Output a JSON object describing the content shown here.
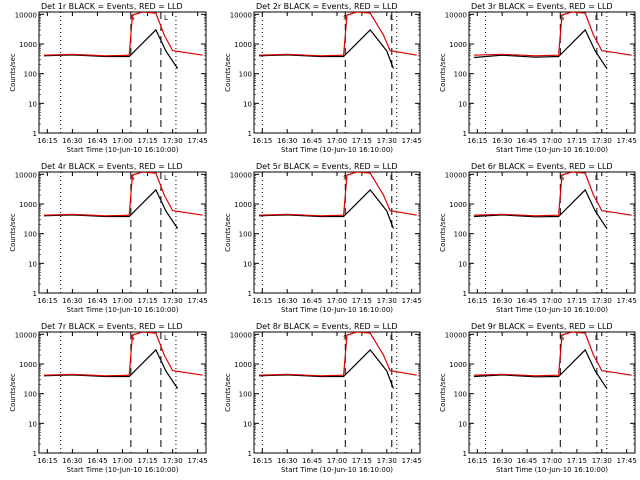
{
  "figure": {
    "colors": {
      "events": "#000000",
      "lld": "#dd0000",
      "axes": "#000000"
    },
    "x_tick_labels": [
      "16:15",
      "16:30",
      "16:45",
      "17:00",
      "17:15",
      "17:30",
      "17:45"
    ],
    "y_tick_labels": [
      "1",
      "10",
      "100",
      "1000",
      "10000"
    ],
    "xlabel": "Start Time (10-Jun-10 16:10:00)",
    "ylabel": "Counts/sec"
  },
  "chart_data": [
    {
      "type": "line",
      "title": "Det 1r BLACK = Events, RED = LLD",
      "ylabel": "Counts/sec",
      "xlabel": "Start Time (10-Jun-10 16:10:00)",
      "x_unit": "time of day",
      "xlim": [
        "16:10",
        "17:50"
      ],
      "y_scale": "log",
      "ylim": [
        1,
        12000
      ],
      "vlines_dotted": [
        "16:23",
        "17:32"
      ],
      "vlines_dashed": [
        "17:05",
        "17:23"
      ],
      "markers": [
        {
          "text": "S",
          "at": "17:06"
        },
        {
          "text": "L",
          "at": "17:26"
        }
      ],
      "series": [
        {
          "name": "Events",
          "color": "#000000",
          "x": [
            "16:13",
            "16:30",
            "16:50",
            "17:04",
            "17:20",
            "17:26",
            "17:33"
          ],
          "y": [
            400,
            430,
            380,
            380,
            3000,
            580,
            150
          ]
        },
        {
          "name": "LLD",
          "color": "#dd0000",
          "x": [
            "16:13",
            "16:30",
            "16:50",
            "17:04",
            "17:06",
            "17:12",
            "17:20",
            "17:25",
            "17:30",
            "17:48"
          ],
          "y": [
            420,
            450,
            400,
            420,
            9500,
            12000,
            11000,
            2000,
            600,
            420
          ]
        }
      ]
    },
    {
      "type": "line",
      "title": "Det 2r BLACK = Events, RED = LLD",
      "ylabel": "Counts/sec",
      "xlabel": "Start Time (10-Jun-10 16:10:00)",
      "x_unit": "time of day",
      "xlim": [
        "16:10",
        "17:50"
      ],
      "y_scale": "log",
      "ylim": [
        1,
        12000
      ],
      "vlines_dotted": [
        "16:15",
        "17:36"
      ],
      "vlines_dashed": [
        "17:05",
        "17:33"
      ],
      "markers": [
        {
          "text": "S",
          "at": "17:05"
        },
        {
          "text": "L",
          "at": "17:33"
        }
      ],
      "series": [
        {
          "name": "Events",
          "color": "#000000",
          "x": [
            "16:13",
            "16:30",
            "16:50",
            "17:04",
            "17:20",
            "17:30",
            "17:34"
          ],
          "y": [
            400,
            430,
            380,
            380,
            3000,
            580,
            150
          ]
        },
        {
          "name": "LLD",
          "color": "#dd0000",
          "x": [
            "16:13",
            "16:30",
            "16:50",
            "17:04",
            "17:06",
            "17:12",
            "17:20",
            "17:28",
            "17:32",
            "17:48"
          ],
          "y": [
            420,
            450,
            400,
            420,
            9500,
            12000,
            11000,
            2000,
            600,
            420
          ]
        }
      ]
    },
    {
      "type": "line",
      "title": "Det 3r BLACK = Events, RED = LLD",
      "ylabel": "Counts/sec",
      "xlabel": "Start Time (10-Jun-10 16:10:00)",
      "x_unit": "time of day",
      "xlim": [
        "16:10",
        "17:50"
      ],
      "y_scale": "log",
      "ylim": [
        1,
        12000
      ],
      "vlines_dotted": [
        "16:20",
        "17:33"
      ],
      "vlines_dashed": [
        "17:05",
        "17:27"
      ],
      "markers": [
        {
          "text": "S",
          "at": "17:06"
        },
        {
          "text": "L",
          "at": "17:27"
        }
      ],
      "series": [
        {
          "name": "Events",
          "color": "#000000",
          "x": [
            "16:13",
            "16:30",
            "16:50",
            "17:04",
            "17:20",
            "17:26",
            "17:33"
          ],
          "y": [
            350,
            420,
            360,
            380,
            3000,
            580,
            150
          ]
        },
        {
          "name": "LLD",
          "color": "#dd0000",
          "x": [
            "16:13",
            "16:30",
            "16:50",
            "17:04",
            "17:06",
            "17:12",
            "17:20",
            "17:25",
            "17:30",
            "17:48"
          ],
          "y": [
            420,
            450,
            400,
            420,
            9500,
            12000,
            11000,
            2000,
            600,
            420
          ]
        }
      ]
    },
    {
      "type": "line",
      "title": "Det 4r BLACK = Events, RED = LLD",
      "ylabel": "Counts/sec",
      "xlabel": "Start Time (10-Jun-10 16:10:00)",
      "x_unit": "time of day",
      "xlim": [
        "16:10",
        "17:50"
      ],
      "y_scale": "log",
      "ylim": [
        1,
        12000
      ],
      "vlines_dotted": [
        "16:23",
        "17:32"
      ],
      "vlines_dashed": [
        "17:05",
        "17:23"
      ],
      "markers": [
        {
          "text": "S",
          "at": "17:06"
        },
        {
          "text": "L",
          "at": "17:26"
        }
      ],
      "series": [
        {
          "name": "Events",
          "color": "#000000",
          "x": [
            "16:13",
            "16:30",
            "16:50",
            "17:04",
            "17:20",
            "17:26",
            "17:33"
          ],
          "y": [
            400,
            430,
            380,
            380,
            3000,
            580,
            150
          ]
        },
        {
          "name": "LLD",
          "color": "#dd0000",
          "x": [
            "16:13",
            "16:30",
            "16:50",
            "17:04",
            "17:06",
            "17:12",
            "17:20",
            "17:25",
            "17:30",
            "17:48"
          ],
          "y": [
            420,
            450,
            400,
            420,
            9500,
            12000,
            11000,
            2000,
            600,
            420
          ]
        }
      ]
    },
    {
      "type": "line",
      "title": "Det 5r BLACK = Events, RED = LLD",
      "ylabel": "Counts/sec",
      "xlabel": "Start Time (10-Jun-10 16:10:00)",
      "x_unit": "time of day",
      "xlim": [
        "16:10",
        "17:50"
      ],
      "y_scale": "log",
      "ylim": [
        1,
        12000
      ],
      "vlines_dotted": [
        "16:15",
        "17:36"
      ],
      "vlines_dashed": [
        "17:05",
        "17:33"
      ],
      "markers": [
        {
          "text": "S",
          "at": "17:05"
        },
        {
          "text": "L",
          "at": "17:33"
        }
      ],
      "series": [
        {
          "name": "Events",
          "color": "#000000",
          "x": [
            "16:13",
            "16:30",
            "16:50",
            "17:04",
            "17:20",
            "17:30",
            "17:34"
          ],
          "y": [
            400,
            430,
            380,
            380,
            3000,
            580,
            150
          ]
        },
        {
          "name": "LLD",
          "color": "#dd0000",
          "x": [
            "16:13",
            "16:30",
            "16:50",
            "17:04",
            "17:06",
            "17:12",
            "17:20",
            "17:28",
            "17:32",
            "17:48"
          ],
          "y": [
            420,
            450,
            400,
            420,
            9500,
            12000,
            11000,
            2000,
            600,
            420
          ]
        }
      ]
    },
    {
      "type": "line",
      "title": "Det 6r BLACK = Events, RED = LLD",
      "ylabel": "Counts/sec",
      "xlabel": "Start Time (10-Jun-10 16:10:00)",
      "x_unit": "time of day",
      "xlim": [
        "16:10",
        "17:50"
      ],
      "y_scale": "log",
      "ylim": [
        1,
        12000
      ],
      "vlines_dotted": [
        "16:20",
        "17:33"
      ],
      "vlines_dashed": [
        "17:05",
        "17:27"
      ],
      "markers": [
        {
          "text": "S",
          "at": "17:06"
        },
        {
          "text": "L",
          "at": "17:27"
        }
      ],
      "series": [
        {
          "name": "Events",
          "color": "#000000",
          "x": [
            "16:13",
            "16:30",
            "16:50",
            "17:04",
            "17:20",
            "17:26",
            "17:33"
          ],
          "y": [
            380,
            430,
            370,
            380,
            3000,
            580,
            150
          ]
        },
        {
          "name": "LLD",
          "color": "#dd0000",
          "x": [
            "16:13",
            "16:30",
            "16:50",
            "17:04",
            "17:06",
            "17:12",
            "17:20",
            "17:25",
            "17:30",
            "17:48"
          ],
          "y": [
            420,
            450,
            400,
            420,
            9500,
            12000,
            11000,
            2000,
            600,
            420
          ]
        }
      ]
    },
    {
      "type": "line",
      "title": "Det 7r BLACK = Events, RED = LLD",
      "ylabel": "Counts/sec",
      "xlabel": "Start Time (10-Jun-10 16:10:00)",
      "x_unit": "time of day",
      "xlim": [
        "16:10",
        "17:50"
      ],
      "y_scale": "log",
      "ylim": [
        1,
        12000
      ],
      "vlines_dotted": [
        "16:23",
        "17:32"
      ],
      "vlines_dashed": [
        "17:05",
        "17:23"
      ],
      "markers": [
        {
          "text": "S",
          "at": "17:06"
        },
        {
          "text": "L",
          "at": "17:26"
        }
      ],
      "series": [
        {
          "name": "Events",
          "color": "#000000",
          "x": [
            "16:13",
            "16:30",
            "16:50",
            "17:04",
            "17:20",
            "17:26",
            "17:33"
          ],
          "y": [
            400,
            430,
            380,
            380,
            3000,
            580,
            150
          ]
        },
        {
          "name": "LLD",
          "color": "#dd0000",
          "x": [
            "16:13",
            "16:30",
            "16:50",
            "17:04",
            "17:06",
            "17:12",
            "17:20",
            "17:25",
            "17:30",
            "17:48"
          ],
          "y": [
            420,
            450,
            400,
            420,
            9500,
            12000,
            11000,
            2000,
            600,
            420
          ]
        }
      ]
    },
    {
      "type": "line",
      "title": "Det 8r BLACK = Events, RED = LLD",
      "ylabel": "Counts/sec",
      "xlabel": "Start Time (10-Jun-10 16:10:00)",
      "x_unit": "time of day",
      "xlim": [
        "16:10",
        "17:50"
      ],
      "y_scale": "log",
      "ylim": [
        1,
        12000
      ],
      "vlines_dotted": [
        "16:15",
        "17:36"
      ],
      "vlines_dashed": [
        "17:05",
        "17:33"
      ],
      "markers": [
        {
          "text": "S",
          "at": "17:05"
        },
        {
          "text": "L",
          "at": "17:33"
        }
      ],
      "series": [
        {
          "name": "Events",
          "color": "#000000",
          "x": [
            "16:13",
            "16:30",
            "16:50",
            "17:04",
            "17:20",
            "17:30",
            "17:34"
          ],
          "y": [
            400,
            430,
            380,
            380,
            3000,
            580,
            150
          ]
        },
        {
          "name": "LLD",
          "color": "#dd0000",
          "x": [
            "16:13",
            "16:30",
            "16:50",
            "17:04",
            "17:06",
            "17:12",
            "17:20",
            "17:28",
            "17:32",
            "17:48"
          ],
          "y": [
            420,
            450,
            400,
            420,
            9500,
            12000,
            11000,
            2000,
            600,
            420
          ]
        }
      ]
    },
    {
      "type": "line",
      "title": "Det 9r BLACK = Events, RED = LLD",
      "ylabel": "Counts/sec",
      "xlabel": "Start Time (10-Jun-10 16:10:00)",
      "x_unit": "time of day",
      "xlim": [
        "16:10",
        "17:50"
      ],
      "y_scale": "log",
      "ylim": [
        1,
        12000
      ],
      "vlines_dotted": [
        "16:20",
        "17:33"
      ],
      "vlines_dashed": [
        "17:05",
        "17:27"
      ],
      "markers": [
        {
          "text": "S",
          "at": "17:06"
        },
        {
          "text": "L",
          "at": "17:27"
        }
      ],
      "series": [
        {
          "name": "Events",
          "color": "#000000",
          "x": [
            "16:13",
            "16:30",
            "16:50",
            "17:04",
            "17:20",
            "17:26",
            "17:33"
          ],
          "y": [
            380,
            430,
            370,
            380,
            3000,
            580,
            150
          ]
        },
        {
          "name": "LLD",
          "color": "#dd0000",
          "x": [
            "16:13",
            "16:30",
            "16:50",
            "17:04",
            "17:06",
            "17:12",
            "17:20",
            "17:25",
            "17:30",
            "17:48"
          ],
          "y": [
            420,
            450,
            400,
            420,
            9500,
            12000,
            11000,
            2000,
            600,
            420
          ]
        }
      ]
    }
  ]
}
